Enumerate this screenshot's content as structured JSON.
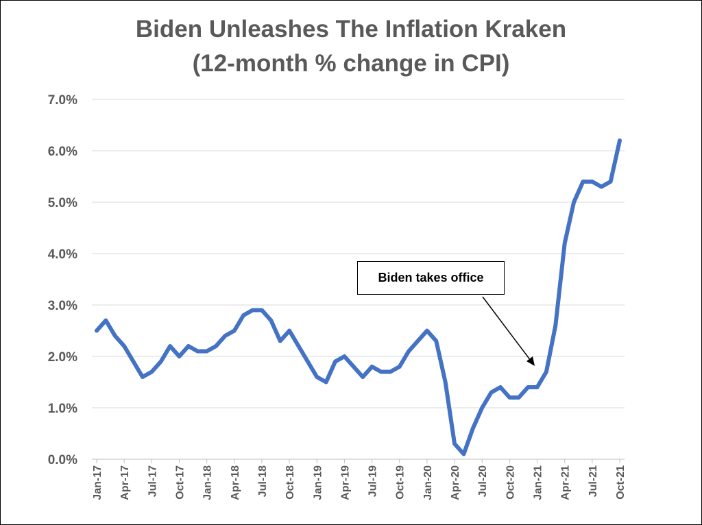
{
  "chart_data": {
    "type": "line",
    "title": "Biden Unleashes The Inflation Kraken",
    "subtitle": "(12-month % change in CPI)",
    "xlabel": "",
    "ylabel": "",
    "ylim": [
      0,
      7
    ],
    "yticks": [
      "0.0%",
      "1.0%",
      "2.0%",
      "3.0%",
      "4.0%",
      "5.0%",
      "6.0%",
      "7.0%"
    ],
    "xtick_labels": [
      "Jan-17",
      "Apr-17",
      "Jul-17",
      "Oct-17",
      "Jan-18",
      "Apr-18",
      "Jul-18",
      "Oct-18",
      "Jan-19",
      "Apr-19",
      "Jul-19",
      "Oct-19",
      "Jan-20",
      "Apr-20",
      "Jul-20",
      "Oct-20",
      "Jan-21",
      "Apr-21",
      "Jul-21",
      "Oct-21"
    ],
    "x_start": "Jan-17",
    "x_end": "Oct-21",
    "grid": true,
    "line_color": "#4472C4",
    "series": [
      {
        "values": [
          2.5,
          2.7,
          2.4,
          2.2,
          1.9,
          1.6,
          1.7,
          1.9,
          2.2,
          2.0,
          2.2,
          2.1,
          2.1,
          2.2,
          2.4,
          2.5,
          2.8,
          2.9,
          2.9,
          2.7,
          2.3,
          2.5,
          2.2,
          1.9,
          1.6,
          1.5,
          1.9,
          2.0,
          1.8,
          1.6,
          1.8,
          1.7,
          1.7,
          1.8,
          2.1,
          2.3,
          2.5,
          2.3,
          1.5,
          0.3,
          0.1,
          0.6,
          1.0,
          1.3,
          1.4,
          1.2,
          1.2,
          1.4,
          1.4,
          1.7,
          2.6,
          4.2,
          5.0,
          5.4,
          5.4,
          5.3,
          5.4,
          6.2
        ]
      }
    ],
    "annotations": [
      {
        "text": "Biden takes office",
        "points_to": "Jan-21"
      }
    ]
  }
}
